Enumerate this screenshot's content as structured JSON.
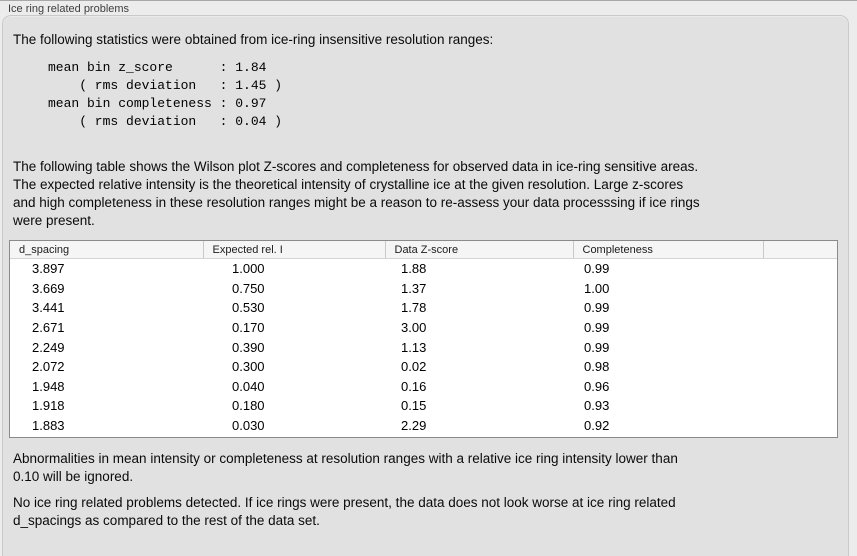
{
  "window": {
    "title": "Ice ring related problems"
  },
  "panel": {
    "intro": "The following statistics were obtained from ice-ring insensitive resolution ranges:",
    "stats_block": "mean bin z_score      : 1.84\n    ( rms deviation   : 1.45 )\nmean bin completeness : 0.97\n    ( rms deviation   : 0.04 )",
    "description": "The following table shows the Wilson plot Z-scores and completeness for observed data in ice-ring sensitive areas.\nThe expected relative intensity is the theoretical intensity of crystalline ice at the given resolution. Large z-scores\nand high completeness in these resolution ranges might be a reason to re-assess your data processsing if ice rings\nwere present.",
    "table": {
      "columns": [
        "d_spacing",
        "Expected rel. I",
        "Data Z-score",
        "Completeness"
      ],
      "rows": [
        [
          "3.897",
          "1.000",
          "1.88",
          "0.99"
        ],
        [
          "3.669",
          "0.750",
          "1.37",
          "1.00"
        ],
        [
          "3.441",
          "0.530",
          "1.78",
          "0.99"
        ],
        [
          "2.671",
          "0.170",
          "3.00",
          "0.99"
        ],
        [
          "2.249",
          "0.390",
          "1.13",
          "0.99"
        ],
        [
          "2.072",
          "0.300",
          "0.02",
          "0.98"
        ],
        [
          "1.948",
          "0.040",
          "0.16",
          "0.96"
        ],
        [
          "1.918",
          "0.180",
          "0.15",
          "0.93"
        ],
        [
          "1.883",
          "0.030",
          "2.29",
          "0.92"
        ]
      ]
    },
    "note_ignore": "Abnormalities in mean intensity or completeness at resolution ranges with a relative ice ring intensity lower than\n0.10 will be ignored.",
    "conclusion": "No ice ring related problems detected. If ice rings were present, the data does not look worse at ice ring related\nd_spacings as compared to the rest of the data set."
  },
  "colors": {
    "page_bg": "#ececec",
    "panel_bg": "#e1e1e1",
    "panel_border": "#c9c9c9",
    "table_border": "#8a8a8a",
    "table_header_bg": "#f5f5f5"
  }
}
